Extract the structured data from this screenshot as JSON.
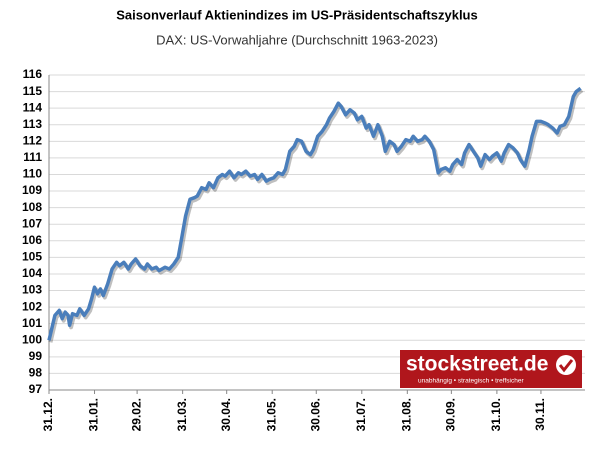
{
  "chart_data": {
    "type": "line",
    "title": "Saisonverlauf Aktienindizes im US-Präsidentschaftszyklus",
    "subtitle": "DAX: US-Vorwahljahre (Durchschnitt 1963-2023)",
    "brand": "stockstreet.de",
    "brand_tagline": "unabhängig • strategisch • treffsicher",
    "x": [
      0,
      4,
      7,
      9,
      11,
      13,
      14,
      16,
      19,
      21,
      24,
      27,
      29,
      31,
      33,
      35,
      37,
      40,
      43,
      46,
      48,
      51,
      54,
      56,
      59,
      62,
      65,
      67,
      70,
      73,
      75,
      79,
      82,
      85,
      88,
      90,
      93,
      96,
      99,
      101,
      104,
      107,
      109,
      112,
      115,
      118,
      120,
      123,
      126,
      129,
      131,
      134,
      137,
      140,
      142,
      145,
      148,
      150,
      153,
      156,
      159,
      161,
      164,
      167,
      169,
      172,
      175,
      178,
      180,
      183,
      186,
      189,
      191,
      194,
      197,
      199,
      202,
      205,
      208,
      210,
      213,
      216,
      218,
      221,
      224,
      227,
      229,
      232,
      235,
      237,
      240,
      243,
      246,
      248,
      251,
      254,
      256,
      259,
      262,
      265,
      267,
      270,
      273,
      275,
      278,
      281,
      283,
      286,
      289,
      292,
      294,
      297,
      300,
      302,
      305,
      308,
      310,
      313,
      316,
      319,
      321,
      324,
      327,
      329,
      332,
      335,
      338,
      340,
      343,
      346,
      348,
      351,
      354,
      357,
      359,
      362
    ],
    "series": [
      {
        "color": "#4a7ebb",
        "values": [
          100,
          101.5,
          101.8,
          101.3,
          101.7,
          101.5,
          100.9,
          101.6,
          101.5,
          101.9,
          101.5,
          101.9,
          102.5,
          103.2,
          102.8,
          103.1,
          102.7,
          103.4,
          104.3,
          104.7,
          104.5,
          104.7,
          104.3,
          104.6,
          104.9,
          104.5,
          104.3,
          104.6,
          104.3,
          104.4,
          104.2,
          104.4,
          104.3,
          104.6,
          105.0,
          106.0,
          107.5,
          108.5,
          108.6,
          108.7,
          109.2,
          109.1,
          109.5,
          109.2,
          109.8,
          110.0,
          109.9,
          110.2,
          109.8,
          110.1,
          110.0,
          110.2,
          109.9,
          110.0,
          109.7,
          110.0,
          109.6,
          109.7,
          109.8,
          110.1,
          110.0,
          110.3,
          111.4,
          111.7,
          112.1,
          112.0,
          111.4,
          111.2,
          111.5,
          112.3,
          112.6,
          113.0,
          113.4,
          113.8,
          114.3,
          114.1,
          113.6,
          113.9,
          113.7,
          113.3,
          113.5,
          112.8,
          113.0,
          112.3,
          113.0,
          112.3,
          111.4,
          112.0,
          111.8,
          111.4,
          111.7,
          112.1,
          112.0,
          112.3,
          112.0,
          112.1,
          112.3,
          112.0,
          111.5,
          110.1,
          110.3,
          110.4,
          110.2,
          110.6,
          110.9,
          110.6,
          111.3,
          111.8,
          111.4,
          111.0,
          110.5,
          111.2,
          110.9,
          111.1,
          111.3,
          110.8,
          111.3,
          111.8,
          111.6,
          111.3,
          110.9,
          110.5,
          111.5,
          112.3,
          113.2,
          113.2,
          113.1,
          113.0,
          112.8,
          112.5,
          112.9,
          113.0,
          113.5,
          114.7,
          115.0,
          115.2
        ]
      }
    ],
    "xlim": [
      0,
      365
    ],
    "xticks": [
      {
        "value": 0,
        "label": "31.12."
      },
      {
        "value": 31,
        "label": "31.01."
      },
      {
        "value": 60,
        "label": "29.02."
      },
      {
        "value": 91,
        "label": "31.03."
      },
      {
        "value": 121,
        "label": "30.04."
      },
      {
        "value": 152,
        "label": "31.05."
      },
      {
        "value": 182,
        "label": "30.06."
      },
      {
        "value": 213,
        "label": "31.07."
      },
      {
        "value": 244,
        "label": "31.08."
      },
      {
        "value": 274,
        "label": "30.09."
      },
      {
        "value": 305,
        "label": "31.10."
      },
      {
        "value": 335,
        "label": "30.11."
      }
    ],
    "ylim": [
      97,
      116
    ],
    "yticks": [
      97,
      98,
      99,
      100,
      101,
      102,
      103,
      104,
      105,
      106,
      107,
      108,
      109,
      110,
      111,
      112,
      113,
      114,
      115,
      116
    ],
    "grid": true
  }
}
